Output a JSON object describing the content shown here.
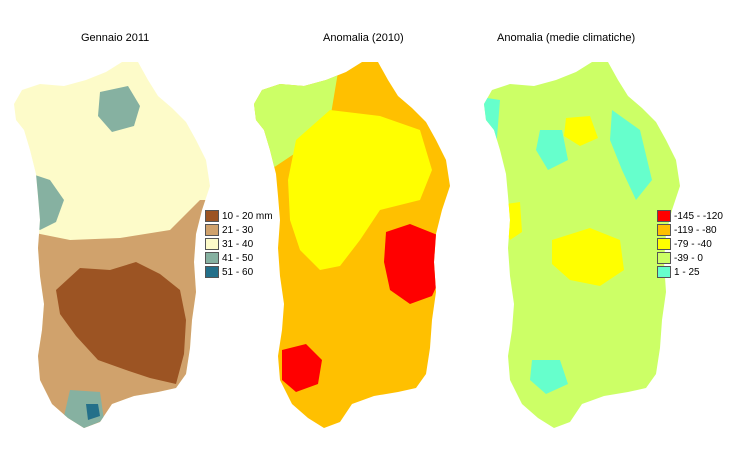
{
  "panels": [
    {
      "title": "Gennaio 2011",
      "legend": [
        {
          "label": "10 - 20 mm",
          "color": "#9c5423"
        },
        {
          "label": "21 - 30",
          "color": "#d0a26c"
        },
        {
          "label": "31 - 40",
          "color": "#fdfbc9"
        },
        {
          "label": "41 - 50",
          "color": "#86b1a1"
        },
        {
          "label": "51 - 60",
          "color": "#24708a"
        }
      ]
    },
    {
      "title": "Anomalia (2010)",
      "legend": []
    },
    {
      "title": "Anomalia (medie climatiche)",
      "legend": [
        {
          "label": "-145 - -120",
          "color": "#ff0000"
        },
        {
          "label": "-119 - -80",
          "color": "#ffc000"
        },
        {
          "label": "-79 - -40",
          "color": "#ffff00"
        },
        {
          "label": "-39 - 0",
          "color": "#ccff66"
        },
        {
          "label": "1 - 25",
          "color": "#66ffcc"
        }
      ]
    }
  ],
  "colors": {
    "anomaly_2010_base": "#ffc000",
    "anomaly_2010_mid": "#ffff00",
    "anomaly_2010_low": "#ff0000",
    "anomaly_2010_coast": "#ccff66",
    "climate_base": "#ccff66",
    "climate_wet": "#66ffcc",
    "climate_dry": "#ffff00"
  }
}
